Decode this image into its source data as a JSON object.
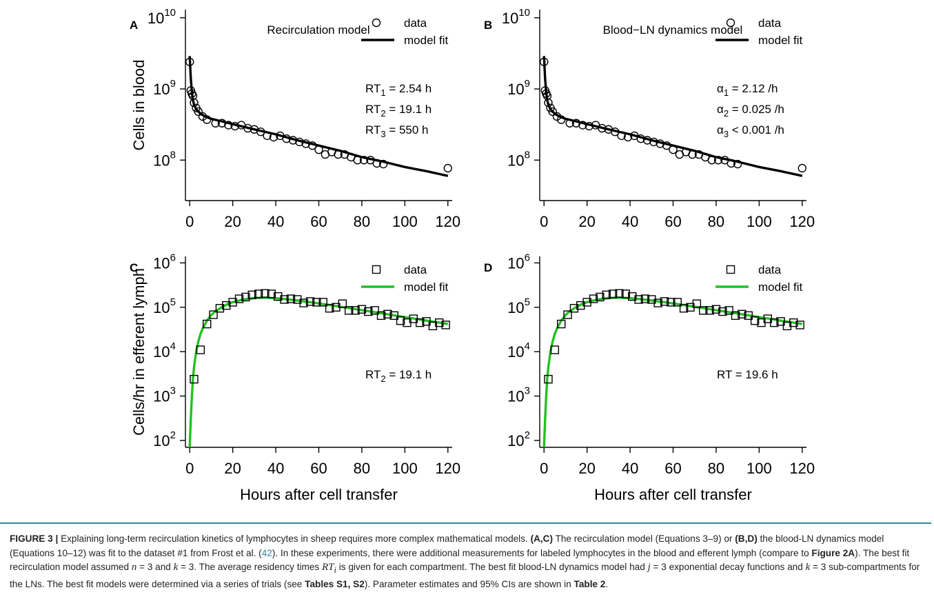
{
  "panels": [
    {
      "id": "A",
      "letter": "A",
      "title": "Recirculation model",
      "ylabel": "Cells in blood",
      "params": [
        {
          "base": "RT",
          "sub": "1",
          "rest": " = 2.54 h"
        },
        {
          "base": "RT",
          "sub": "2",
          "rest": " = 19.1 h"
        },
        {
          "base": "RT",
          "sub": "3",
          "rest": " = 550 h"
        }
      ]
    },
    {
      "id": "B",
      "letter": "B",
      "title": "Blood−LN dynamics model",
      "ylabel": "",
      "params": [
        {
          "base": "α",
          "sub": "1",
          "rest": " = 2.12 /h"
        },
        {
          "base": "α",
          "sub": "2",
          "rest": " = 0.025 /h"
        },
        {
          "base": "α",
          "sub": "3",
          "rest": " < 0.001 /h"
        }
      ]
    },
    {
      "id": "C",
      "letter": "C",
      "title": "",
      "ylabel": "Cells/hr in efferent lymph",
      "params": [
        {
          "base": "RT",
          "sub": "2",
          "rest": " = 19.1 h"
        }
      ]
    },
    {
      "id": "D",
      "letter": "D",
      "title": "",
      "ylabel": "",
      "params": [
        {
          "base": "RT",
          "sub": "",
          "rest": " = 19.6 h"
        }
      ]
    }
  ],
  "shared_xlabel": "Hours after cell transfer",
  "caption": {
    "label": "FIGURE 3 |",
    "lead": "Explaining long-term recirculation kinetics of lymphocytes in sheep requires more complex mathematical models.",
    "ac": "(A,C)",
    "t1": "The recirculation model (Equations 3–9) or",
    "bd": "(B,D)",
    "t2": "the blood-LN dynamics model (Equations 10–12) was fit to the dataset #1 from Frost et al. (",
    "ref": "42",
    "t3": "). In these experiments, there were additional measurements for labeled lymphocytes in the blood and efferent lymph (compare to",
    "fig2a": "Figure 2A",
    "t4": "). The best fit recirculation model assumed",
    "n_var": "n",
    "n_eq": " = 3 and ",
    "k_var": "k",
    "k_eq": " = 3. The average residency times",
    "rt_var": "RT",
    "rt_sub": "i",
    "t5": "is given for each compartment. The best fit blood-LN dynamics model had",
    "j_var": "j",
    "j_eq": " = 3 exponential decay functions and ",
    "k2_var": "k",
    "k2_eq": " = 3",
    "t6": "sub-compartments for the LNs. The best fit models were determined via a series of trials (see",
    "tables_s": "Tables S1, S2",
    "t7": "). Parameter estimates and 95% CIs are shown in",
    "table2": "Table 2",
    "t8": "."
  },
  "chart_data": [
    {
      "panel": "A",
      "type": "scatter",
      "title": "Recirculation model",
      "xlabel": "",
      "ylabel": "Cells in blood",
      "yscale": "log",
      "xlim": [
        -2,
        122
      ],
      "ylim": [
        27000000,
        13000000000
      ],
      "xticks": [
        0,
        20,
        40,
        60,
        80,
        100,
        120
      ],
      "yticks": [
        {
          "base": "10",
          "exp": "8",
          "value": 100000000
        },
        {
          "base": "10",
          "exp": "9",
          "value": 1000000000
        },
        {
          "base": "10",
          "exp": "10",
          "value": 10000000000
        }
      ],
      "legend": {
        "position": "top-right",
        "entries": [
          {
            "label": "data",
            "marker": "circle"
          },
          {
            "label": "model fit",
            "marker": "line"
          }
        ]
      },
      "series": [
        {
          "name": "data",
          "marker": "circle",
          "x": [
            0,
            0.5,
            1,
            1.5,
            2,
            3,
            4,
            6,
            8,
            12,
            15,
            18,
            21,
            24,
            27,
            30,
            33,
            36,
            39,
            42,
            45,
            48,
            51,
            54,
            57,
            60,
            63,
            66,
            69,
            72,
            75,
            78,
            81,
            84,
            87,
            90,
            120
          ],
          "y": [
            2400000000,
            950000000,
            860000000,
            800000000,
            640000000,
            540000000,
            480000000,
            410000000,
            370000000,
            330000000,
            330000000,
            310000000,
            300000000,
            310000000,
            280000000,
            270000000,
            250000000,
            220000000,
            210000000,
            220000000,
            200000000,
            190000000,
            180000000,
            170000000,
            160000000,
            140000000,
            120000000,
            130000000,
            120000000,
            120000000,
            110000000,
            100000000,
            100000000,
            100000000,
            90000000,
            88000000,
            77000000
          ]
        },
        {
          "name": "model fit",
          "marker": "line",
          "color": "#000000",
          "x": [
            0,
            0.5,
            1,
            1.5,
            2,
            3,
            4,
            5,
            6,
            8,
            10,
            15,
            20,
            30,
            40,
            50,
            60,
            70,
            80,
            90,
            100,
            110,
            120
          ],
          "y": [
            2900000000,
            1400000000,
            900000000,
            700000000,
            600000000,
            520000000,
            480000000,
            450000000,
            430000000,
            400000000,
            380000000,
            350000000,
            320000000,
            270000000,
            230000000,
            190000000,
            160000000,
            135000000,
            110000000,
            95000000,
            80000000,
            70000000,
            60000000
          ]
        }
      ]
    },
    {
      "panel": "B",
      "type": "scatter",
      "title": "Blood−LN dynamics model",
      "xlabel": "",
      "ylabel": "",
      "yscale": "log",
      "xlim": [
        -2,
        122
      ],
      "ylim": [
        27000000,
        13000000000
      ],
      "xticks": [
        0,
        20,
        40,
        60,
        80,
        100,
        120
      ],
      "yticks": [
        {
          "base": "10",
          "exp": "8",
          "value": 100000000
        },
        {
          "base": "10",
          "exp": "9",
          "value": 1000000000
        },
        {
          "base": "10",
          "exp": "10",
          "value": 10000000000
        }
      ],
      "legend": {
        "position": "top-right",
        "entries": [
          {
            "label": "data",
            "marker": "circle"
          },
          {
            "label": "model fit",
            "marker": "line"
          }
        ]
      },
      "series": [
        {
          "name": "data",
          "marker": "circle",
          "x": [
            0,
            0.5,
            1,
            1.5,
            2,
            3,
            4,
            6,
            8,
            12,
            15,
            18,
            21,
            24,
            27,
            30,
            33,
            36,
            39,
            42,
            45,
            48,
            51,
            54,
            57,
            60,
            63,
            66,
            69,
            72,
            75,
            78,
            81,
            84,
            87,
            90,
            120
          ],
          "y": [
            2400000000,
            950000000,
            860000000,
            800000000,
            640000000,
            540000000,
            480000000,
            410000000,
            370000000,
            330000000,
            330000000,
            310000000,
            300000000,
            310000000,
            280000000,
            270000000,
            250000000,
            220000000,
            210000000,
            220000000,
            200000000,
            190000000,
            180000000,
            170000000,
            160000000,
            140000000,
            120000000,
            130000000,
            120000000,
            120000000,
            110000000,
            100000000,
            100000000,
            100000000,
            90000000,
            88000000,
            77000000
          ]
        },
        {
          "name": "model fit",
          "marker": "line",
          "color": "#000000",
          "x": [
            0,
            0.5,
            1,
            1.5,
            2,
            3,
            4,
            5,
            6,
            8,
            10,
            15,
            20,
            30,
            40,
            50,
            60,
            70,
            80,
            90,
            100,
            110,
            120
          ],
          "y": [
            2900000000,
            1400000000,
            900000000,
            700000000,
            600000000,
            520000000,
            480000000,
            450000000,
            430000000,
            400000000,
            380000000,
            350000000,
            320000000,
            270000000,
            230000000,
            190000000,
            160000000,
            135000000,
            110000000,
            95000000,
            80000000,
            70000000,
            60000000
          ]
        }
      ]
    },
    {
      "panel": "C",
      "type": "scatter",
      "title": "",
      "xlabel": "Hours after cell transfer",
      "ylabel": "Cells/hr in efferent lymph",
      "yscale": "log",
      "xlim": [
        -2,
        122
      ],
      "ylim": [
        70,
        1400000
      ],
      "xticks": [
        0,
        20,
        40,
        60,
        80,
        100,
        120
      ],
      "yticks": [
        {
          "base": "10",
          "exp": "2",
          "value": 100
        },
        {
          "base": "10",
          "exp": "3",
          "value": 1000
        },
        {
          "base": "10",
          "exp": "4",
          "value": 10000
        },
        {
          "base": "10",
          "exp": "5",
          "value": 100000
        },
        {
          "base": "10",
          "exp": "6",
          "value": 1000000
        }
      ],
      "legend": {
        "position": "top-right",
        "entries": [
          {
            "label": "data",
            "marker": "square"
          },
          {
            "label": "model fit",
            "marker": "line"
          }
        ]
      },
      "series": [
        {
          "name": "data",
          "marker": "square",
          "x": [
            2,
            5,
            8,
            11,
            14,
            17,
            20,
            23,
            26,
            29,
            32,
            35,
            38,
            41,
            44,
            47,
            50,
            53,
            56,
            59,
            62,
            65,
            68,
            71,
            74,
            77,
            80,
            83,
            86,
            89,
            92,
            95,
            98,
            101,
            104,
            107,
            110,
            113,
            116,
            119
          ],
          "y": [
            2400,
            11000,
            42000,
            68000,
            95000,
            110000,
            130000,
            155000,
            170000,
            190000,
            200000,
            205000,
            200000,
            175000,
            150000,
            155000,
            150000,
            125000,
            135000,
            130000,
            130000,
            95000,
            100000,
            120000,
            85000,
            85000,
            90000,
            80000,
            85000,
            65000,
            70000,
            65000,
            50000,
            45000,
            55000,
            45000,
            48000,
            38000,
            45000,
            40000
          ]
        },
        {
          "name": "model fit",
          "marker": "line",
          "color": "#22c11f",
          "x": [
            0,
            0.5,
            1,
            1.5,
            2,
            3,
            4,
            5,
            6,
            8,
            10,
            12,
            15,
            18,
            21,
            25,
            30,
            35,
            40,
            45,
            50,
            55,
            60,
            65,
            70,
            75,
            80,
            85,
            90,
            95,
            100,
            105,
            110,
            115,
            120
          ],
          "y": [
            70,
            300,
            1000,
            2500,
            4500,
            10000,
            17000,
            25000,
            33000,
            50000,
            67000,
            82000,
            102000,
            120000,
            135000,
            150000,
            162000,
            165000,
            160000,
            152000,
            142000,
            132000,
            122000,
            112000,
            103000,
            94000,
            86000,
            79000,
            72000,
            66000,
            60000,
            55000,
            50000,
            46000,
            42000
          ]
        }
      ]
    },
    {
      "panel": "D",
      "type": "scatter",
      "title": "",
      "xlabel": "Hours after cell transfer",
      "ylabel": "",
      "yscale": "log",
      "xlim": [
        -2,
        122
      ],
      "ylim": [
        70,
        1400000
      ],
      "xticks": [
        0,
        20,
        40,
        60,
        80,
        100,
        120
      ],
      "yticks": [
        {
          "base": "10",
          "exp": "2",
          "value": 100
        },
        {
          "base": "10",
          "exp": "3",
          "value": 1000
        },
        {
          "base": "10",
          "exp": "4",
          "value": 10000
        },
        {
          "base": "10",
          "exp": "5",
          "value": 100000
        },
        {
          "base": "10",
          "exp": "6",
          "value": 1000000
        }
      ],
      "legend": {
        "position": "top-right",
        "entries": [
          {
            "label": "data",
            "marker": "square"
          },
          {
            "label": "model fit",
            "marker": "line"
          }
        ]
      },
      "series": [
        {
          "name": "data",
          "marker": "square",
          "x": [
            2,
            5,
            8,
            11,
            14,
            17,
            20,
            23,
            26,
            29,
            32,
            35,
            38,
            41,
            44,
            47,
            50,
            53,
            56,
            59,
            62,
            65,
            68,
            71,
            74,
            77,
            80,
            83,
            86,
            89,
            92,
            95,
            98,
            101,
            104,
            107,
            110,
            113,
            116,
            119
          ],
          "y": [
            2400,
            11000,
            42000,
            68000,
            95000,
            110000,
            130000,
            155000,
            170000,
            190000,
            200000,
            205000,
            200000,
            175000,
            150000,
            155000,
            150000,
            125000,
            135000,
            130000,
            130000,
            95000,
            100000,
            120000,
            85000,
            85000,
            90000,
            80000,
            85000,
            65000,
            70000,
            65000,
            50000,
            45000,
            55000,
            45000,
            48000,
            38000,
            45000,
            40000
          ]
        },
        {
          "name": "model fit",
          "marker": "line",
          "color": "#22c11f",
          "x": [
            0,
            0.5,
            1,
            1.5,
            2,
            3,
            4,
            5,
            6,
            8,
            10,
            12,
            15,
            18,
            21,
            25,
            30,
            35,
            40,
            45,
            50,
            55,
            60,
            65,
            70,
            75,
            80,
            85,
            90,
            95,
            100,
            105,
            110,
            115,
            120
          ],
          "y": [
            70,
            300,
            1000,
            2500,
            4500,
            10000,
            17000,
            25000,
            33000,
            50000,
            67000,
            82000,
            102000,
            120000,
            135000,
            150000,
            162000,
            165000,
            160000,
            152000,
            142000,
            132000,
            122000,
            112000,
            103000,
            94000,
            86000,
            79000,
            72000,
            66000,
            60000,
            55000,
            50000,
            46000,
            42000
          ]
        }
      ]
    }
  ]
}
